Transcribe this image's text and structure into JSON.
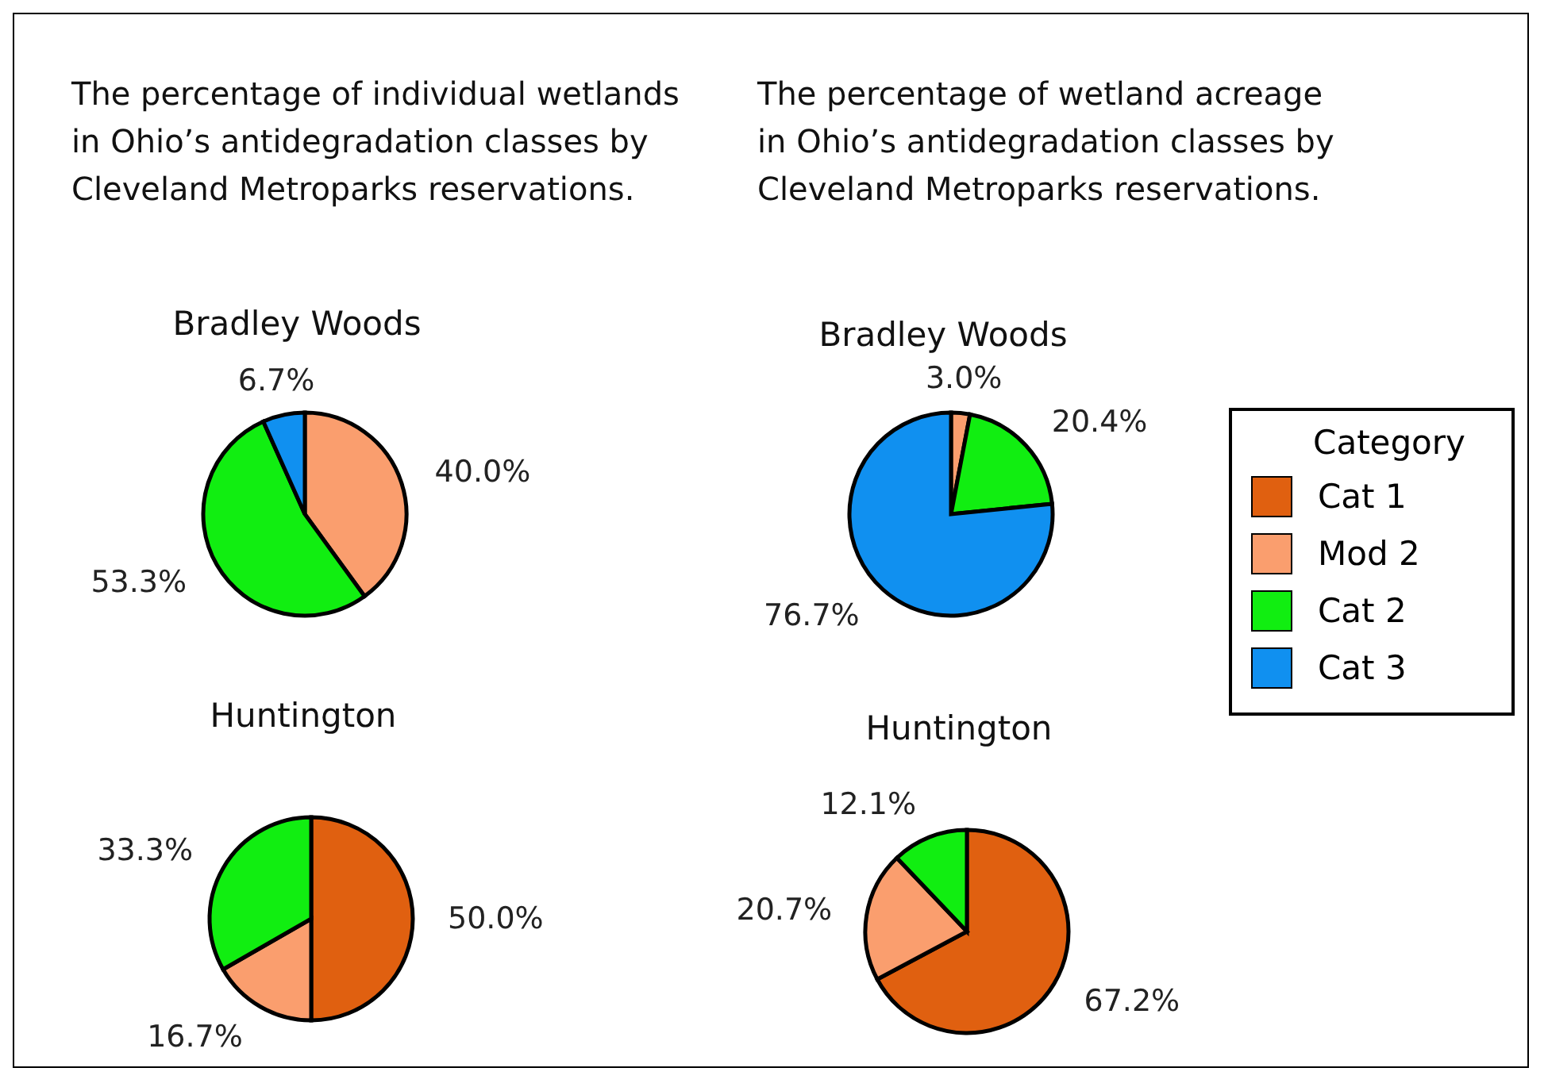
{
  "chart_data": [
    {
      "type": "pie",
      "title": "The percentage of individual wetlands in Ohio’s antidegradation classes by Cleveland Metroparks reservations.",
      "subtitle": "Bradley Woods",
      "colors": [
        "#fa9e6e",
        "#11ee11",
        "#1090f0"
      ],
      "values": [
        40.0,
        53.3,
        6.7
      ],
      "value_labels": [
        "40.0%",
        "53.3%",
        "6.7%"
      ]
    },
    {
      "type": "pie",
      "title": "Huntington",
      "colors": [
        "#e06010",
        "#fa9e6e",
        "#11ee11"
      ],
      "values": [
        50.0,
        16.7,
        33.3
      ],
      "value_labels": [
        "50.0%",
        "16.7%",
        "33.3%"
      ]
    },
    {
      "type": "pie",
      "title": "The percentage of wetland acreage in Ohio’s antidegradation classes by Cleveland Metroparks reservations.",
      "subtitle": "Bradley Woods",
      "categories": [
        "Cat 1",
        "Mod 2",
        "Cat 2",
        "Cat 3"
      ],
      "colors": [
        "#e06010",
        "#fa9e6e",
        "#11ee11",
        "#1090f0"
      ],
      "values": [
        null,
        3.0,
        20.4,
        76.7
      ],
      "value_labels": [
        null,
        "3.0%",
        "20.4%",
        "76.7%"
      ],
      "legend": "right",
      "legend_title": "Category"
    },
    {
      "type": "pie",
      "title": "Huntington",
      "colors": [
        "#e06010",
        "#fa9e6e",
        "#11ee11"
      ],
      "values": [
        67.2,
        20.7,
        12.1
      ],
      "value_labels": [
        "67.2%",
        "20.7%",
        "12.1%"
      ]
    }
  ]
}
